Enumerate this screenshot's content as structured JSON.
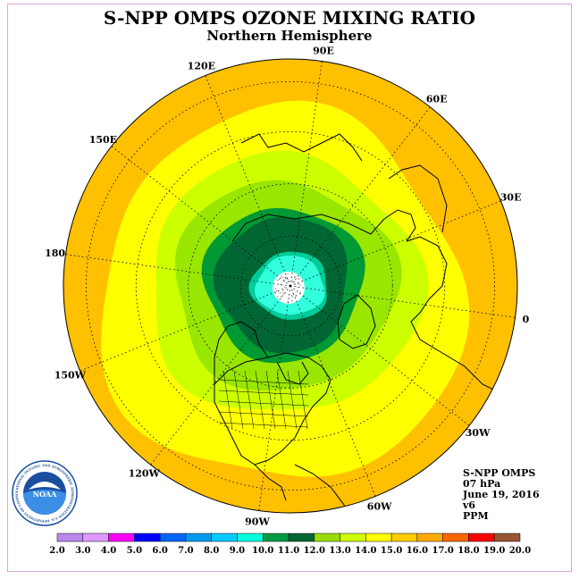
{
  "header": {
    "title": "S-NPP OMPS OZONE MIXING RATIO",
    "subtitle": "Northern Hemisphere"
  },
  "map": {
    "projection": "north-polar-stereographic",
    "longitude_labels": [
      {
        "id": "90e",
        "text": "90E",
        "angle": -82
      },
      {
        "id": "60e",
        "text": "60E",
        "angle": -52
      },
      {
        "id": "30e",
        "text": "30E",
        "angle": -22
      },
      {
        "id": "0",
        "text": "0",
        "angle": 8
      },
      {
        "id": "30w",
        "text": "30W",
        "angle": 38
      },
      {
        "id": "60w",
        "text": "60W",
        "angle": 68
      },
      {
        "id": "90w",
        "text": "90W",
        "angle": 98
      },
      {
        "id": "120w",
        "text": "120W",
        "angle": 128
      },
      {
        "id": "150w",
        "text": "150W",
        "angle": 158
      },
      {
        "id": "180",
        "text": "180",
        "angle": 188
      },
      {
        "id": "150e",
        "text": "150E",
        "angle": 218
      },
      {
        "id": "120e",
        "text": "120E",
        "angle": 248
      }
    ],
    "contours": [
      {
        "level": 15,
        "color": "#ffff00",
        "rx": 0.8,
        "ry": 0.82,
        "dx": -0.04,
        "dy": 0.05
      },
      {
        "level": 14,
        "color": "#ccff00",
        "rx": 0.6,
        "ry": 0.57,
        "dx": -0.03,
        "dy": 0.0
      },
      {
        "level": 13,
        "color": "#99e600",
        "rx": 0.49,
        "ry": 0.46,
        "dx": -0.03,
        "dy": 0.0
      },
      {
        "level": 12,
        "color": "#009933",
        "rx": 0.35,
        "ry": 0.34,
        "dx": -0.03,
        "dy": -0.01
      },
      {
        "level": 11,
        "color": "#006633",
        "rx": 0.29,
        "ry": 0.3,
        "dx": -0.03,
        "dy": -0.01
      },
      {
        "level": 10,
        "color": "#00cc99",
        "rx": 0.17,
        "ry": 0.15,
        "dx": 0.0,
        "dy": 0.0
      },
      {
        "level": 9,
        "color": "#33ffdd",
        "rx": 0.15,
        "ry": 0.13,
        "dx": 0.0,
        "dy": 0.0
      }
    ],
    "outer_color": "#ffc000"
  },
  "info": {
    "source": "S-NPP OMPS",
    "level": "07 hPa",
    "date": "June 19, 2016",
    "version": "v6",
    "units": "PPM"
  },
  "colorbar": {
    "colors": [
      "#bb88ee",
      "#dd99ff",
      "#ff00ff",
      "#0000ff",
      "#0066ff",
      "#0099ee",
      "#00ccff",
      "#00ffdd",
      "#009944",
      "#006633",
      "#99dd00",
      "#ccff00",
      "#ffff00",
      "#ffcc00",
      "#ffaa00",
      "#ff6600",
      "#ff0000",
      "#995533"
    ],
    "labels": [
      "2.0",
      "3.0",
      "4.0",
      "5.0",
      "6.0",
      "7.0",
      "8.0",
      "9.0",
      "10.0",
      "11.0",
      "12.0",
      "13.0",
      "14.0",
      "15.0",
      "16.0",
      "17.0",
      "18.0",
      "19.0",
      "20.0"
    ]
  },
  "logo": {
    "center_text": "NOAA",
    "ring_text": "NATIONAL OCEANIC AND ATMOSPHERIC ADMINISTRATION U.S. DEPARTMENT OF COMMERCE"
  }
}
